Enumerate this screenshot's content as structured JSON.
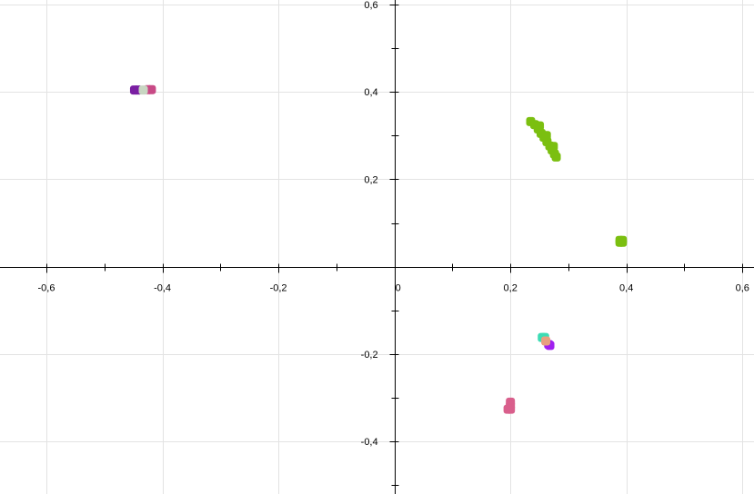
{
  "chart_data": {
    "type": "scatter",
    "title": "",
    "xlabel": "",
    "ylabel": "",
    "xlim": [
      -0.68,
      0.62
    ],
    "ylim": [
      -0.52,
      0.61
    ],
    "grid": true,
    "x_major_ticks": [
      -0.6,
      -0.4,
      -0.2,
      0,
      0.2,
      0.4,
      0.6
    ],
    "y_major_ticks": [
      -0.4,
      -0.2,
      0.2,
      0.4,
      0.6
    ],
    "x_tick_labels": [
      "-0,6",
      "-0,4",
      "-0,2",
      "0",
      "0,2",
      "0,4",
      "0,6"
    ],
    "y_tick_labels": [
      "-0,4",
      "-0,2",
      "0,2",
      "0,4",
      "0,6"
    ],
    "x_minor_step": 0.1,
    "y_minor_step": 0.1,
    "colors": {
      "axis": "#000000",
      "grid": "#e3e3e3",
      "background": "#ffffff"
    },
    "series": [
      {
        "color": "#7bbf10",
        "points": [
          [
            0.235,
            0.332
          ],
          [
            0.242,
            0.325
          ],
          [
            0.248,
            0.315
          ],
          [
            0.253,
            0.305
          ],
          [
            0.258,
            0.296
          ],
          [
            0.263,
            0.286
          ],
          [
            0.268,
            0.276
          ],
          [
            0.272,
            0.267
          ],
          [
            0.276,
            0.258
          ],
          [
            0.279,
            0.251
          ],
          [
            0.25,
            0.322
          ],
          [
            0.262,
            0.3
          ],
          [
            0.274,
            0.275
          ],
          [
            0.389,
            0.06
          ],
          [
            0.393,
            0.06
          ],
          [
            0.389,
            0.056
          ],
          [
            0.393,
            0.056
          ]
        ]
      },
      {
        "color": "#7a1fa2",
        "points": [
          [
            -0.448,
            0.404
          ],
          [
            -0.442,
            0.404
          ]
        ]
      },
      {
        "color": "#c84a86",
        "points": [
          [
            -0.425,
            0.405
          ],
          [
            -0.419,
            0.405
          ]
        ]
      },
      {
        "color": "#c8d6c2",
        "points": [
          [
            -0.433,
            0.404
          ]
        ]
      },
      {
        "color": "#3ddcb4",
        "points": [
          [
            0.255,
            -0.162
          ],
          [
            0.259,
            -0.162
          ]
        ]
      },
      {
        "color": "#a020f0",
        "points": [
          [
            0.266,
            -0.178
          ],
          [
            0.268,
            -0.18
          ]
        ]
      },
      {
        "color": "#e8a080",
        "points": [
          [
            0.261,
            -0.17
          ]
        ]
      },
      {
        "color": "#d95f8c",
        "points": [
          [
            0.2,
            -0.31
          ],
          [
            0.2,
            -0.318
          ],
          [
            0.2,
            -0.326
          ],
          [
            0.196,
            -0.326
          ]
        ]
      }
    ]
  }
}
